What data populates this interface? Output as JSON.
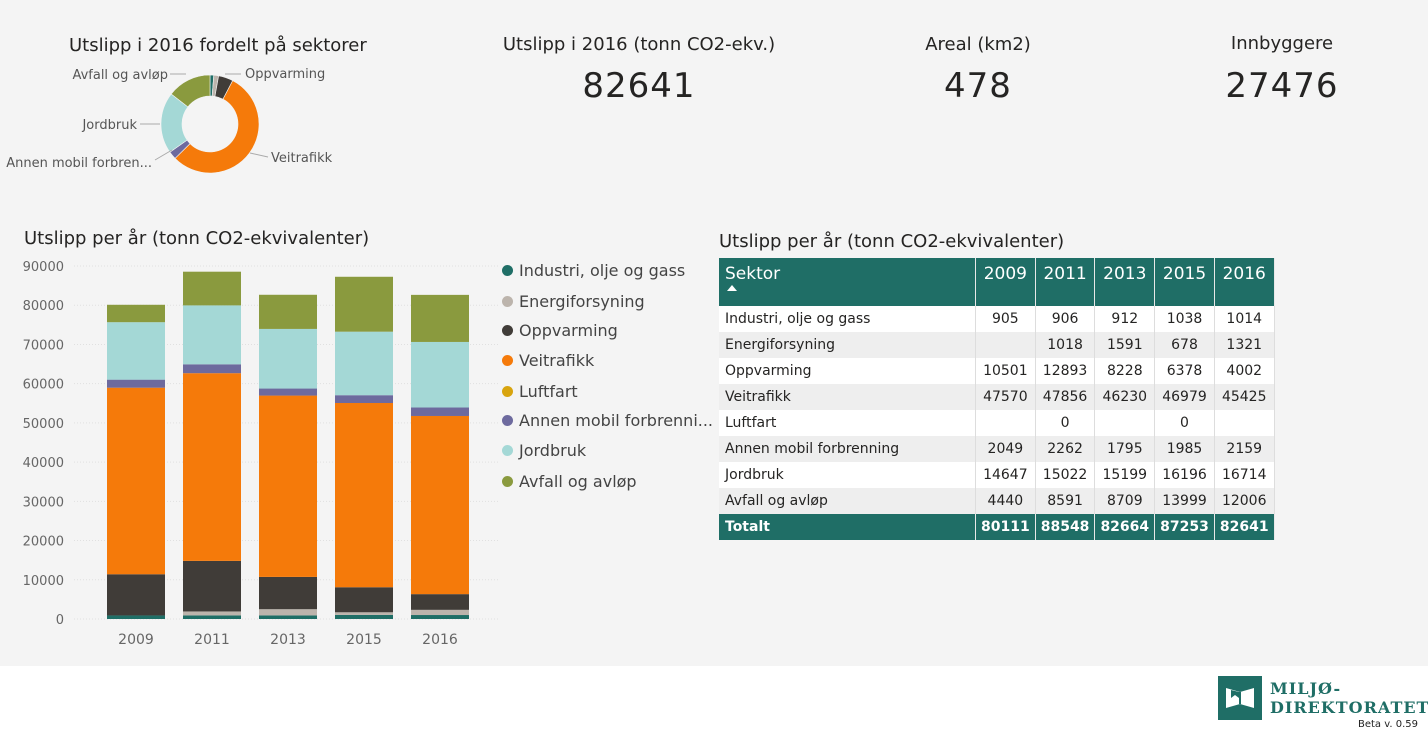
{
  "kpis": {
    "emissions_title": "Utslipp i 2016 (tonn CO2-ekv.)",
    "emissions_value": "82641",
    "area_title": "Areal (km2)",
    "area_value": "478",
    "population_title": "Innbyggere",
    "population_value": "27476"
  },
  "donut": {
    "title": "Utslipp i 2016 fordelt på sektorer",
    "labels": {
      "avfall": "Avfall og avløp",
      "oppvarming": "Oppvarming",
      "jordbruk": "Jordbruk",
      "veitrafikk": "Veitrafikk",
      "annen": "Annen mobil forbren..."
    }
  },
  "bar_title": "Utslipp per år (tonn CO2-ekvivalenter)",
  "table": {
    "title": "Utslipp per år (tonn CO2-ekvivalenter)",
    "header": [
      "Sektor",
      "2009",
      "2011",
      "2013",
      "2015",
      "2016"
    ],
    "rows": [
      [
        "Industri, olje og gass",
        "905",
        "906",
        "912",
        "1038",
        "1014"
      ],
      [
        "Energiforsyning",
        "",
        "1018",
        "1591",
        "678",
        "1321"
      ],
      [
        "Oppvarming",
        "10501",
        "12893",
        "8228",
        "6378",
        "4002"
      ],
      [
        "Veitrafikk",
        "47570",
        "47856",
        "46230",
        "46979",
        "45425"
      ],
      [
        "Luftfart",
        "",
        "0",
        "",
        "0",
        ""
      ],
      [
        "Annen mobil forbrenning",
        "2049",
        "2262",
        "1795",
        "1985",
        "2159"
      ],
      [
        "Jordbruk",
        "14647",
        "15022",
        "15199",
        "16196",
        "16714"
      ],
      [
        "Avfall og avløp",
        "4440",
        "8591",
        "8709",
        "13999",
        "12006"
      ]
    ],
    "total": [
      "Totalt",
      "80111",
      "88548",
      "82664",
      "87253",
      "82641"
    ]
  },
  "logo": {
    "line1": "MILJØ-",
    "line2": "DIREKTORATET",
    "version": "Beta v. 0.59"
  },
  "colors": {
    "industri": "#1f6e66",
    "energi": "#bcb4ac",
    "oppvarming": "#403c38",
    "veitrafikk": "#f57a0a",
    "luftfart": "#d8a40e",
    "annen": "#6d6a9e",
    "jordbruk": "#a4d8d6",
    "avfall": "#8a9a3e",
    "header": "#1f6e66"
  },
  "chart_data": [
    {
      "type": "pie",
      "title": "Utslipp i 2016 fordelt på sektorer",
      "labels": [
        "Industri, olje og gass",
        "Energiforsyning",
        "Oppvarming",
        "Veitrafikk",
        "Luftfart",
        "Annen mobil forbrenning",
        "Jordbruk",
        "Avfall og avløp"
      ],
      "values": [
        1014,
        1321,
        4002,
        45425,
        0,
        2159,
        16714,
        12006
      ]
    },
    {
      "type": "bar",
      "stacked": true,
      "title": "Utslipp per år (tonn CO2-ekvivalenter)",
      "categories": [
        "2009",
        "2011",
        "2013",
        "2015",
        "2016"
      ],
      "ylim": [
        0,
        90000
      ],
      "yticks": [
        "0",
        "10000",
        "20000",
        "30000",
        "40000",
        "50000",
        "60000",
        "70000",
        "80000",
        "90000"
      ],
      "grid": true,
      "legend_position": "right",
      "series": [
        {
          "name": "Industri, olje og gass",
          "values": [
            905,
            906,
            912,
            1038,
            1014
          ]
        },
        {
          "name": "Energiforsyning",
          "values": [
            0,
            1018,
            1591,
            678,
            1321
          ]
        },
        {
          "name": "Oppvarming",
          "values": [
            10501,
            12893,
            8228,
            6378,
            4002
          ]
        },
        {
          "name": "Veitrafikk",
          "values": [
            47570,
            47856,
            46230,
            46979,
            45425
          ]
        },
        {
          "name": "Luftfart",
          "values": [
            0,
            0,
            0,
            0,
            0
          ]
        },
        {
          "name": "Annen mobil forbrenni...",
          "values": [
            2049,
            2262,
            1795,
            1985,
            2159
          ]
        },
        {
          "name": "Jordbruk",
          "values": [
            14647,
            15022,
            15199,
            16196,
            16714
          ]
        },
        {
          "name": "Avfall og avløp",
          "values": [
            4440,
            8591,
            8709,
            13999,
            12006
          ]
        }
      ]
    }
  ]
}
